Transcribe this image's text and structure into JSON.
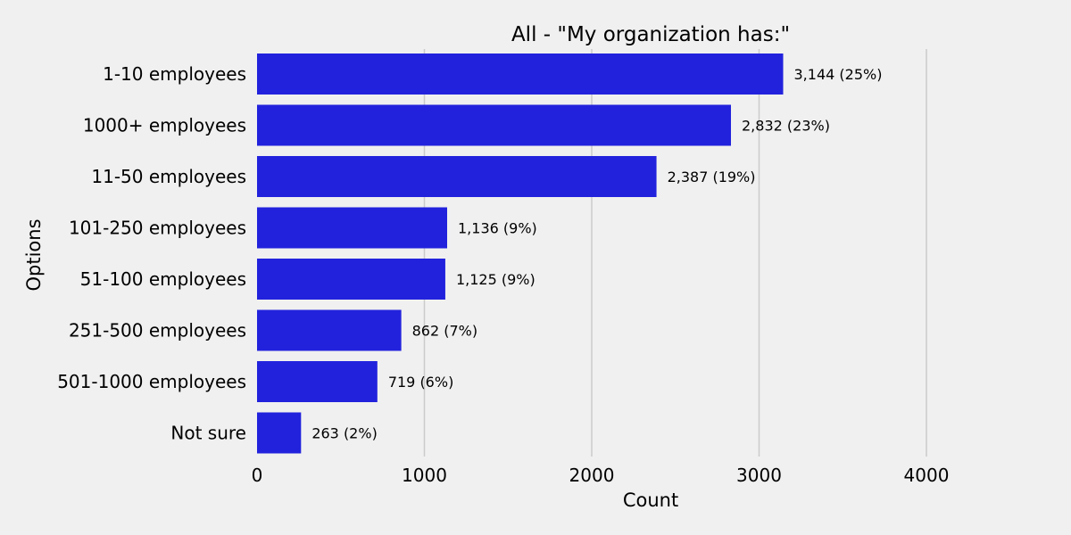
{
  "chart_data": {
    "type": "bar",
    "orientation": "horizontal",
    "title": "All - \"My organization has:\"",
    "xlabel": "Count",
    "ylabel": "Options",
    "categories": [
      "1-10 employees",
      "1000+ employees",
      "11-50 employees",
      "101-250 employees",
      "51-100 employees",
      "251-500 employees",
      "501-1000 employees",
      "Not sure"
    ],
    "values": [
      3144,
      2832,
      2387,
      1136,
      1125,
      862,
      719,
      263
    ],
    "value_labels": [
      "3,144 (25%)",
      "2,832 (23%)",
      "2,387 (19%)",
      "1,136 (9%)",
      "1,125 (9%)",
      "862 (7%)",
      "719 (6%)",
      "263 (2%)"
    ],
    "xlim": [
      0,
      4500
    ],
    "xticks": [
      0,
      1000,
      2000,
      3000,
      4000
    ],
    "xtick_labels": [
      "0",
      "1000",
      "2000",
      "3000",
      "4000"
    ],
    "grid": "vertical",
    "legend": "none",
    "colors": {
      "bar": "#2222dd",
      "background": "#f0f0f0",
      "grid": "#cbcbcb"
    }
  }
}
